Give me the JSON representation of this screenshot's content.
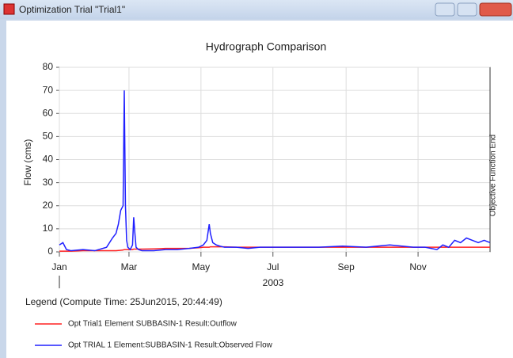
{
  "window": {
    "title": "Optimization Trial \"Trial1\""
  },
  "chart_data": {
    "type": "line",
    "title": "Hydrograph Comparison",
    "ylabel": "Flow (cms)",
    "xlabel": "2003",
    "annotation": "Objective Function End",
    "x": [
      0,
      3,
      6,
      10,
      20,
      30,
      40,
      45,
      48,
      50,
      52,
      54,
      55,
      56,
      57,
      58,
      60,
      62,
      63,
      64,
      65,
      67,
      70,
      80,
      90,
      100,
      110,
      118,
      122,
      125,
      127,
      128,
      130,
      133,
      136,
      140,
      150,
      160,
      170,
      180,
      200,
      220,
      240,
      260,
      280,
      300,
      310,
      320,
      325,
      330,
      335,
      340,
      345,
      350,
      355,
      360,
      365
    ],
    "series": [
      {
        "name": "Opt Trial1 Element SUBBASIN-1 Result:Outflow",
        "color": "#ff2020",
        "values": [
          0.3,
          0.3,
          0.3,
          0.3,
          0.5,
          0.5,
          0.5,
          0.5,
          0.5,
          0.6,
          0.7,
          0.8,
          1,
          1,
          1,
          1,
          1,
          1,
          1.2,
          1.2,
          1.2,
          1.2,
          1.2,
          1.3,
          1.5,
          1.5,
          1.5,
          1.8,
          2,
          2,
          2,
          2.2,
          2.2,
          2.2,
          2.2,
          2.2,
          2,
          2,
          2,
          2,
          2,
          2,
          2,
          2,
          2,
          2,
          2,
          2,
          2,
          2,
          2,
          2,
          2,
          2,
          2,
          2,
          2
        ]
      },
      {
        "name": "Opt TRIAL 1 Element:SUBBASIN-1 Result:Observed Flow",
        "color": "#2020ff",
        "values": [
          3,
          4,
          1,
          0.5,
          1,
          0.5,
          2,
          6,
          8,
          12,
          18,
          20,
          70,
          20,
          5,
          2,
          1,
          3,
          15,
          8,
          2,
          1,
          0.5,
          0.5,
          1,
          1,
          1.5,
          2,
          3,
          5,
          12,
          8,
          4,
          3,
          2.5,
          2,
          2,
          1.5,
          2,
          2,
          2,
          2,
          2.5,
          2,
          3,
          2,
          2,
          1,
          3,
          2,
          5,
          4,
          6,
          5,
          4,
          5,
          4
        ]
      }
    ],
    "xlim": [
      0,
      365
    ],
    "xticks": [
      {
        "value": 0,
        "label": "Jan"
      },
      {
        "value": 59,
        "label": "Mar"
      },
      {
        "value": 120,
        "label": "May"
      },
      {
        "value": 181,
        "label": "Jul"
      },
      {
        "value": 243,
        "label": "Sep"
      },
      {
        "value": 304,
        "label": "Nov"
      }
    ],
    "ylim": [
      0,
      80
    ],
    "yticks": [
      0,
      10,
      20,
      30,
      40,
      50,
      60,
      70,
      80
    ],
    "grid": true,
    "legend_title": "Legend (Compute Time: 25Jun2015, 20:44:49)"
  }
}
